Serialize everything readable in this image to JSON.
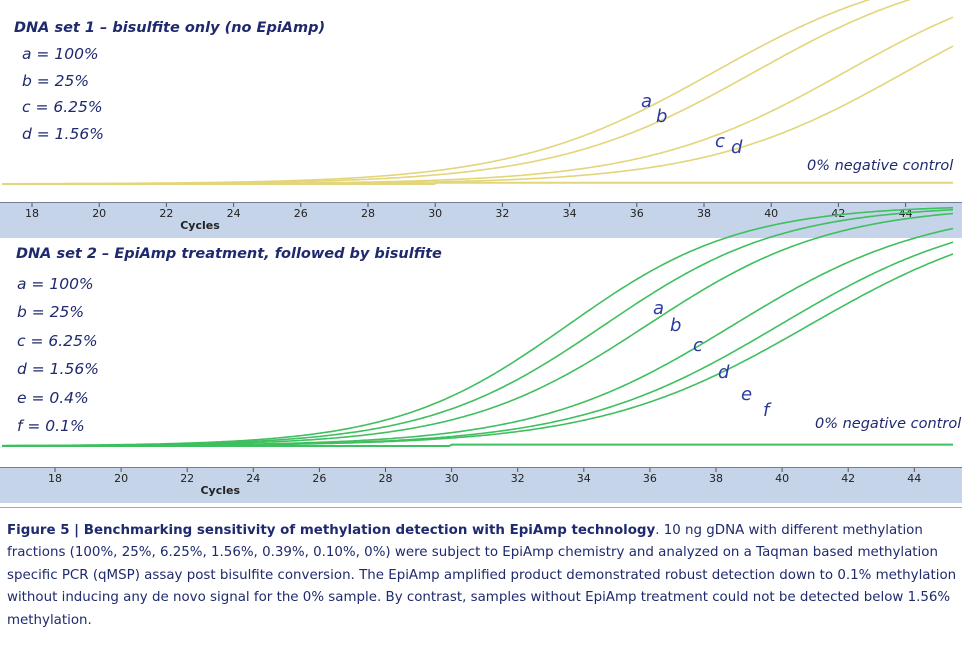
{
  "chart_data": [
    {
      "type": "line",
      "title": "DNA set 1 – bisulfite only (no EpiAmp)",
      "xlabel": "Cycles",
      "xlim": [
        16.5,
        45
      ],
      "x_ticks": [
        18,
        20,
        22,
        24,
        26,
        28,
        30,
        32,
        34,
        36,
        38,
        40,
        42,
        44
      ],
      "color": "#e3d57a",
      "legend": [
        "a = 100%",
        "b = 25%",
        "c = 6.25%",
        "d = 1.56%"
      ],
      "series": [
        {
          "name": "a",
          "fraction": "100%",
          "midpoint_cycle": 38.3,
          "slope": 3.0,
          "top": 1.0
        },
        {
          "name": "b",
          "fraction": "25%",
          "midpoint_cycle": 39.5,
          "slope": 3.0,
          "top": 1.0
        },
        {
          "name": "c",
          "fraction": "6.25%",
          "midpoint_cycle": 42.2,
          "slope": 3.0,
          "top": 1.0
        },
        {
          "name": "d",
          "fraction": "1.56%",
          "midpoint_cycle": 44.0,
          "slope": 3.0,
          "top": 1.0
        },
        {
          "name": "0% negative control",
          "fraction": "0%",
          "midpoint_cycle": null,
          "slope": null,
          "top": 0.0
        }
      ],
      "curve_labels": [
        "a",
        "b",
        "c",
        "d"
      ],
      "annotation": "0% negative control"
    },
    {
      "type": "line",
      "title": "DNA set 2 – EpiAmp treatment, followed by bisulfite",
      "xlabel": "Cycles",
      "xlim": [
        16.5,
        45
      ],
      "x_ticks": [
        18,
        20,
        22,
        24,
        26,
        28,
        30,
        32,
        34,
        36,
        38,
        40,
        42,
        44
      ],
      "color": "#3fbf5f",
      "legend": [
        "a = 100%",
        "b = 25%",
        "c = 6.25%",
        "d = 1.56%",
        "e = 0.4%",
        "f = 0.1%"
      ],
      "series": [
        {
          "name": "a",
          "fraction": "100%",
          "midpoint_cycle": 33.5,
          "slope": 2.6,
          "top": 1.0
        },
        {
          "name": "b",
          "fraction": "25%",
          "midpoint_cycle": 34.6,
          "slope": 2.7,
          "top": 1.0
        },
        {
          "name": "c",
          "fraction": "6.25%",
          "midpoint_cycle": 35.9,
          "slope": 2.8,
          "top": 1.0
        },
        {
          "name": "d",
          "fraction": "1.56%",
          "midpoint_cycle": 38.5,
          "slope": 3.0,
          "top": 1.0
        },
        {
          "name": "e",
          "fraction": "0.4%",
          "midpoint_cycle": 39.9,
          "slope": 3.1,
          "top": 1.0
        },
        {
          "name": "f",
          "fraction": "0.1%",
          "midpoint_cycle": 40.8,
          "slope": 3.2,
          "top": 1.0
        },
        {
          "name": "0% negative control",
          "fraction": "0%",
          "midpoint_cycle": null,
          "slope": null,
          "top": 0.0
        }
      ],
      "curve_labels": [
        "a",
        "b",
        "c",
        "d",
        "e",
        "f"
      ],
      "annotation": "0% negative control"
    }
  ],
  "caption": {
    "bold": "Figure 5 | Benchmarking sensitivity of methylation detection with EpiAmp technology",
    "text": ". 10 ng gDNA with different methylation fractions (100%, 25%, 6.25%, 1.56%, 0.39%, 0.10%, 0%) were subject to EpiAmp chemistry and analyzed on a Taqman based methylation specific PCR (qMSP) assay post bisulfite conversion. The EpiAmp amplified product demonstrated robust detection down to 0.1% methylation without inducing any de novo signal for the 0% sample. By contrast, samples without EpiAmp treatment could not be detected below 1.56% methylation."
  }
}
